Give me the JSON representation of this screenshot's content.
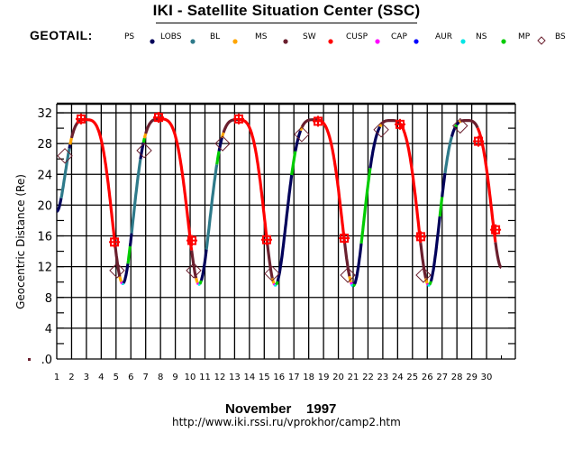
{
  "header": {
    "title": "IKI - Satellite Situation Center (SSC)",
    "satellite": "GEOTAIL:"
  },
  "legend": [
    {
      "label": "PS",
      "marker": "dot",
      "color": "#00005a"
    },
    {
      "label": "LOBS",
      "marker": "dot",
      "color": "#2e7a8a"
    },
    {
      "label": "BL",
      "marker": "dot",
      "color": "#ffa500"
    },
    {
      "label": "MS",
      "marker": "dot",
      "color": "#6a1f2e"
    },
    {
      "label": "SW",
      "marker": "dot",
      "color": "#ff0000"
    },
    {
      "label": "CUSP",
      "marker": "dot",
      "color": "#ff00ff"
    },
    {
      "label": "CAP",
      "marker": "dot",
      "color": "#0000ff"
    },
    {
      "label": "AUR",
      "marker": "dot",
      "color": "#00e5e5"
    },
    {
      "label": "NS",
      "marker": "dot",
      "color": "#00cc00"
    },
    {
      "label": "MP",
      "marker": "diamond",
      "color": "#6a1f2e"
    },
    {
      "label": "BS",
      "marker": "cross",
      "color": "#ff0000"
    }
  ],
  "footer": {
    "month": "November    1997",
    "url": "http://www.iki.rssi.ru/vprokhor/camp2.htm"
  },
  "chart_data": {
    "type": "line",
    "title": "IKI - Satellite Situation Center (SSC)",
    "xlabel": "November 1997",
    "ylabel": "Geocentric Distance (Re)",
    "xlim": [
      1,
      32
    ],
    "ylim": [
      0,
      33.3
    ],
    "xticks": [
      1,
      2,
      3,
      4,
      5,
      6,
      7,
      8,
      9,
      10,
      11,
      12,
      13,
      14,
      15,
      16,
      17,
      18,
      19,
      20,
      21,
      22,
      23,
      24,
      25,
      26,
      27,
      28,
      29,
      30
    ],
    "yticks": [
      0,
      4,
      8,
      12,
      16,
      20,
      24,
      28,
      32
    ],
    "ytick_labels": [
      ".0",
      "4",
      "8",
      "12",
      "16",
      "20",
      "24",
      "28",
      "32"
    ],
    "grid": true,
    "orbit_keypoints": [
      [
        1.0,
        19.2
      ],
      [
        2.95,
        31.1
      ],
      [
        5.45,
        9.8
      ],
      [
        7.95,
        31.2
      ],
      [
        10.6,
        9.7
      ],
      [
        13.2,
        31.1
      ],
      [
        15.75,
        9.6
      ],
      [
        18.35,
        31.1
      ],
      [
        21.0,
        9.5
      ],
      [
        23.55,
        31.0
      ],
      [
        26.1,
        9.6
      ],
      [
        28.65,
        31.0
      ],
      [
        31.0,
        11.9
      ]
    ],
    "region_segments": [
      {
        "region": "PS",
        "from": 1.0,
        "to": 1.3
      },
      {
        "region": "LOBS",
        "from": 1.3,
        "to": 1.85
      },
      {
        "region": "PS",
        "from": 1.85,
        "to": 1.9
      },
      {
        "region": "BL",
        "from": 1.9,
        "to": 2.0
      },
      {
        "region": "MS",
        "from": 2.0,
        "to": 2.65
      },
      {
        "region": "SW",
        "from": 2.65,
        "to": 4.9
      },
      {
        "region": "MS",
        "from": 4.9,
        "to": 5.25
      },
      {
        "region": "BL",
        "from": 5.25,
        "to": 5.35
      },
      {
        "region": "CUSP",
        "from": 5.35,
        "to": 5.42
      },
      {
        "region": "AUR",
        "from": 5.42,
        "to": 5.5
      },
      {
        "region": "PS",
        "from": 5.5,
        "to": 5.8
      },
      {
        "region": "NS",
        "from": 5.8,
        "to": 5.95
      },
      {
        "region": "PS",
        "from": 5.95,
        "to": 6.05
      },
      {
        "region": "LOBS",
        "from": 6.05,
        "to": 6.65
      },
      {
        "region": "PS",
        "from": 6.65,
        "to": 6.85
      },
      {
        "region": "NS",
        "from": 6.85,
        "to": 6.92
      },
      {
        "region": "BL",
        "from": 6.92,
        "to": 7.0
      },
      {
        "region": "MS",
        "from": 7.0,
        "to": 7.9
      },
      {
        "region": "SW",
        "from": 7.9,
        "to": 10.1
      },
      {
        "region": "MS",
        "from": 10.1,
        "to": 10.4
      },
      {
        "region": "BL",
        "from": 10.4,
        "to": 10.5
      },
      {
        "region": "CUSP",
        "from": 10.5,
        "to": 10.56
      },
      {
        "region": "AUR",
        "from": 10.56,
        "to": 10.65
      },
      {
        "region": "NS",
        "from": 10.65,
        "to": 10.75
      },
      {
        "region": "PS",
        "from": 10.75,
        "to": 11.1
      },
      {
        "region": "LOBS",
        "from": 11.1,
        "to": 11.8
      },
      {
        "region": "NS",
        "from": 11.8,
        "to": 11.95
      },
      {
        "region": "PS",
        "from": 11.95,
        "to": 12.15
      },
      {
        "region": "BL",
        "from": 12.15,
        "to": 12.25
      },
      {
        "region": "MS",
        "from": 12.25,
        "to": 13.25
      },
      {
        "region": "SW",
        "from": 13.25,
        "to": 15.15
      },
      {
        "region": "MS",
        "from": 15.15,
        "to": 15.55
      },
      {
        "region": "BL",
        "from": 15.55,
        "to": 15.65
      },
      {
        "region": "CUSP",
        "from": 15.65,
        "to": 15.7
      },
      {
        "region": "AUR",
        "from": 15.7,
        "to": 15.8
      },
      {
        "region": "NS",
        "from": 15.8,
        "to": 15.9
      },
      {
        "region": "PS",
        "from": 15.9,
        "to": 16.85
      },
      {
        "region": "NS",
        "from": 16.85,
        "to": 17.1
      },
      {
        "region": "PS",
        "from": 17.1,
        "to": 17.45
      },
      {
        "region": "BL",
        "from": 17.45,
        "to": 17.55
      },
      {
        "region": "MS",
        "from": 17.55,
        "to": 18.6
      },
      {
        "region": "SW",
        "from": 18.6,
        "to": 20.4
      },
      {
        "region": "MS",
        "from": 20.4,
        "to": 20.75
      },
      {
        "region": "BL",
        "from": 20.75,
        "to": 20.85
      },
      {
        "region": "CUSP",
        "from": 20.85,
        "to": 20.9
      },
      {
        "region": "AUR",
        "from": 20.9,
        "to": 21.0
      },
      {
        "region": "NS",
        "from": 21.0,
        "to": 21.1
      },
      {
        "region": "PS",
        "from": 21.1,
        "to": 21.55
      },
      {
        "region": "NS",
        "from": 21.55,
        "to": 22.15
      },
      {
        "region": "PS",
        "from": 22.15,
        "to": 22.8
      },
      {
        "region": "BL",
        "from": 22.8,
        "to": 22.9
      },
      {
        "region": "MS",
        "from": 22.9,
        "to": 24.15
      },
      {
        "region": "SW",
        "from": 24.15,
        "to": 25.55
      },
      {
        "region": "MS",
        "from": 25.55,
        "to": 25.9
      },
      {
        "region": "BL",
        "from": 25.9,
        "to": 26.0
      },
      {
        "region": "CUSP",
        "from": 26.0,
        "to": 26.05
      },
      {
        "region": "AUR",
        "from": 26.05,
        "to": 26.15
      },
      {
        "region": "NS",
        "from": 26.15,
        "to": 26.25
      },
      {
        "region": "PS",
        "from": 26.25,
        "to": 26.85
      },
      {
        "region": "NS",
        "from": 26.85,
        "to": 27.0
      },
      {
        "region": "PS",
        "from": 27.0,
        "to": 27.2
      },
      {
        "region": "LOBS",
        "from": 27.2,
        "to": 27.65
      },
      {
        "region": "PS",
        "from": 27.65,
        "to": 27.9
      },
      {
        "region": "NS",
        "from": 27.9,
        "to": 27.98
      },
      {
        "region": "PS",
        "from": 27.98,
        "to": 28.15
      },
      {
        "region": "BL",
        "from": 28.15,
        "to": 28.25
      },
      {
        "region": "MS",
        "from": 28.25,
        "to": 29.4
      },
      {
        "region": "SW",
        "from": 29.4,
        "to": 30.6
      },
      {
        "region": "MS",
        "from": 30.6,
        "to": 31.0
      }
    ],
    "bow_shock_crossings": [
      [
        2.64,
        31.2
      ],
      [
        4.89,
        15.2
      ],
      [
        7.87,
        31.4
      ],
      [
        10.12,
        15.4
      ],
      [
        13.28,
        31.2
      ],
      [
        15.16,
        15.5
      ],
      [
        18.63,
        30.9
      ],
      [
        20.4,
        15.7
      ],
      [
        24.16,
        30.5
      ],
      [
        25.56,
        15.9
      ],
      [
        29.45,
        28.3
      ],
      [
        30.61,
        16.8
      ]
    ],
    "magnetopause_crossings": [
      [
        1.55,
        26.4
      ],
      [
        5.07,
        11.5
      ],
      [
        6.9,
        27.1
      ],
      [
        10.24,
        11.5
      ],
      [
        12.19,
        28.0
      ],
      [
        15.53,
        11.1
      ],
      [
        17.53,
        29.2
      ],
      [
        20.64,
        10.9
      ],
      [
        22.89,
        29.8
      ],
      [
        25.74,
        10.9
      ],
      [
        28.22,
        30.3
      ]
    ],
    "region_colors": {
      "PS": "#00005a",
      "LOBS": "#2e7a8a",
      "BL": "#ffa500",
      "MS": "#6a1f2e",
      "SW": "#ff0000",
      "CUSP": "#ff00ff",
      "CAP": "#0000ff",
      "AUR": "#00e5e5",
      "NS": "#00cc00",
      "MP": "#6a1f2e",
      "BS": "#ff0000"
    }
  }
}
